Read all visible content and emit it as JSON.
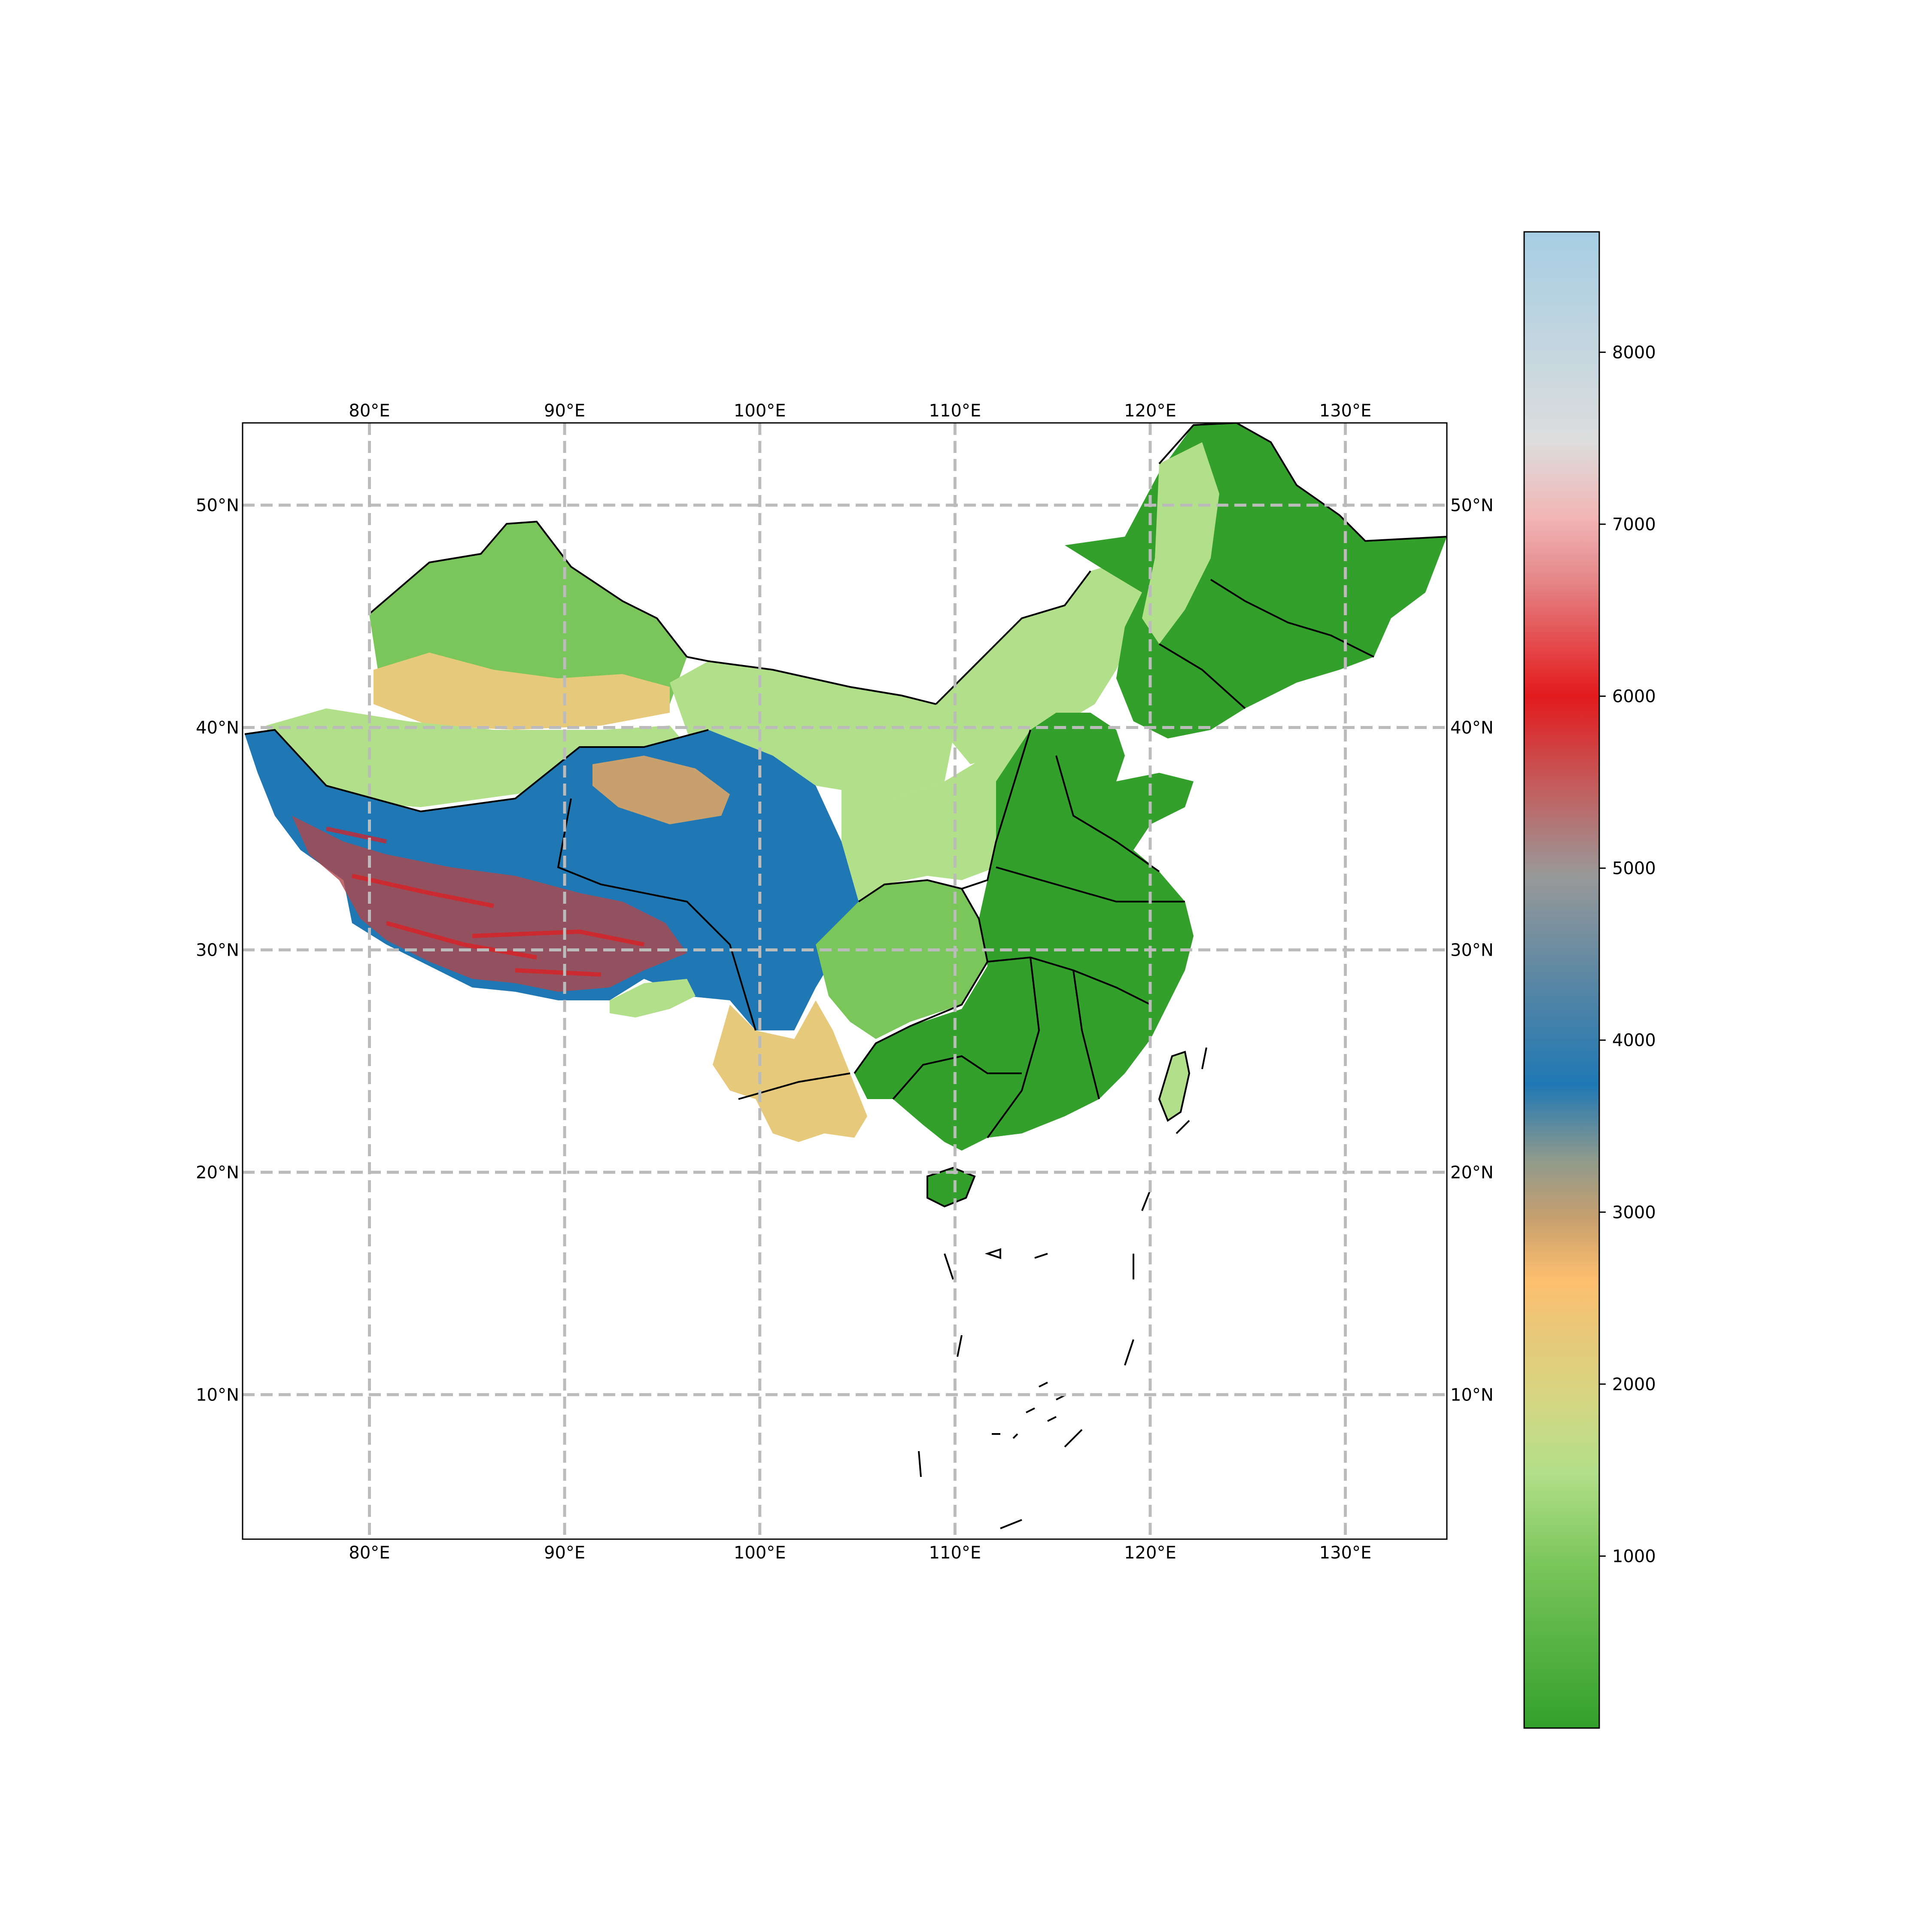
{
  "map": {
    "extent": {
      "lon_min": 73.5,
      "lon_max": 135.2,
      "lat_min": 3.5,
      "lat_max": 53.7
    },
    "gridlines": {
      "lons": [
        80,
        90,
        100,
        110,
        120,
        130
      ],
      "lats": [
        10,
        20,
        30,
        40,
        50
      ],
      "style": "dashed",
      "color": "#bbbbbb"
    },
    "lon_labels": [
      "80°E",
      "90°E",
      "100°E",
      "110°E",
      "120°E",
      "130°E"
    ],
    "lat_labels": [
      "10°N",
      "20°N",
      "30°N",
      "40°N",
      "50°N"
    ],
    "colorbar": {
      "ticks": [
        1000,
        2000,
        3000,
        4000,
        5000,
        6000,
        7000,
        8000
      ],
      "tick_labels": [
        "1000",
        "2000",
        "3000",
        "4000",
        "5000",
        "6000",
        "7000",
        "8000"
      ],
      "range": [
        0,
        8700
      ],
      "colors": {
        "low": "#33a02c",
        "green_light": "#b2df8a",
        "yellow": "#e6c97a",
        "orange": "#fdbf6f",
        "tan": "#c8a06e",
        "blue": "#1f78b4",
        "gray": "#999999",
        "red": "#e31a1c",
        "pink": "#f2b6b6",
        "light_gray": "#dddddd",
        "high": "#a6cee3"
      }
    },
    "regions": {
      "lowland": "#33a02c",
      "plains": "#b2df8a",
      "mid": "#e6c97a",
      "highland": "#fdbf6f",
      "plateau": "#1f78b4",
      "peaks": "#e31a1c"
    }
  }
}
